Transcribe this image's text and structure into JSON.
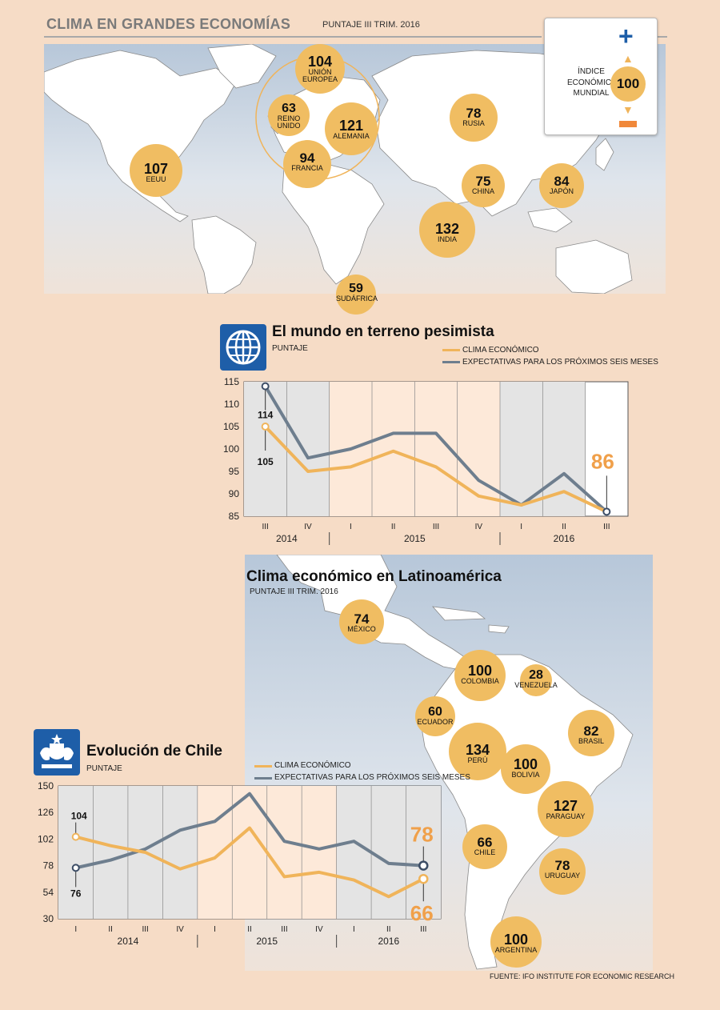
{
  "header": {
    "title": "CLIMA EN GRANDES ECONOMÍAS",
    "subtitle": "PUNTAJE III TRIM. 2016"
  },
  "index_box": {
    "label_line1": "ÍNDICE",
    "label_line2": "ECONÓMICO",
    "label_line3": "MUNDIAL",
    "value": "100",
    "plus": "+",
    "minus": "−",
    "colors": {
      "plus": "#1e5ea8",
      "minus": "#f0883a",
      "bubble": "#f0bd62"
    }
  },
  "world_map": {
    "countries": [
      {
        "value": "104",
        "name": "UNIÓN EUROPEA"
      },
      {
        "value": "63",
        "name": "REINO UNIDO"
      },
      {
        "value": "121",
        "name": "ALEMANIA"
      },
      {
        "value": "94",
        "name": "FRANCIA"
      },
      {
        "value": "78",
        "name": "RUSIA"
      },
      {
        "value": "107",
        "name": "EEUU"
      },
      {
        "value": "75",
        "name": "CHINA"
      },
      {
        "value": "84",
        "name": "JAPÓN"
      },
      {
        "value": "132",
        "name": "INDIA"
      },
      {
        "value": "59",
        "name": "SUDÁFRICA"
      }
    ]
  },
  "latam_map": {
    "title": "Clima económico en Latinoamérica",
    "subtitle": "PUNTAJE III TRIM. 2016",
    "countries": [
      {
        "value": "74",
        "name": "MÉXICO"
      },
      {
        "value": "100",
        "name": "COLOMBIA"
      },
      {
        "value": "28",
        "name": "VENEZUELA"
      },
      {
        "value": "60",
        "name": "ECUADOR"
      },
      {
        "value": "82",
        "name": "BRASIL"
      },
      {
        "value": "134",
        "name": "PERÚ"
      },
      {
        "value": "100",
        "name": "BOLIVIA"
      },
      {
        "value": "127",
        "name": "PARAGUAY"
      },
      {
        "value": "66",
        "name": "CHILE"
      },
      {
        "value": "78",
        "name": "URUGUAY"
      },
      {
        "value": "100",
        "name": "ARGENTINA"
      }
    ]
  },
  "source": "FUENTE: IFO INSTITUTE FOR ECONOMIC RESEARCH",
  "chart_data": [
    {
      "type": "line",
      "title": "El mundo en terreno pesimista",
      "ylabel": "PUNTAJE",
      "categories": [
        "III",
        "IV",
        "I",
        "II",
        "III",
        "IV",
        "I",
        "II",
        "III"
      ],
      "year_labels": [
        {
          "label": "2014",
          "at": 0.5
        },
        {
          "label": "2015",
          "at": 3.5
        },
        {
          "label": "2016",
          "at": 7
        }
      ],
      "ylim": [
        85,
        115
      ],
      "yticks": [
        85,
        90,
        95,
        100,
        105,
        110,
        115
      ],
      "series": [
        {
          "name": "CLIMA ECONÓMICO",
          "color": "#f0b45a",
          "values": [
            105,
            95,
            96,
            99.5,
            96,
            89.5,
            87.5,
            90.5,
            86
          ]
        },
        {
          "name": "EXPECTATIVAS PARA LOS PRÓXIMOS SEIS MESES",
          "color": "#6e7e8e",
          "values": [
            114,
            98,
            100,
            103.5,
            103.5,
            93,
            87.5,
            94.5,
            86
          ]
        }
      ],
      "annotations": {
        "start_clima": "105",
        "start_expect": "114",
        "end_value": "86"
      },
      "shaded_bands": [
        "2014",
        "2016"
      ]
    },
    {
      "type": "line",
      "title": "Evolución de Chile",
      "ylabel": "PUNTAJE",
      "categories": [
        "I",
        "II",
        "III",
        "IV",
        "I",
        "II",
        "III",
        "IV",
        "I",
        "II",
        "III"
      ],
      "year_labels": [
        {
          "label": "2014",
          "at": 1.5
        },
        {
          "label": "2015",
          "at": 5.5
        },
        {
          "label": "2016",
          "at": 9
        }
      ],
      "ylim": [
        30,
        150
      ],
      "yticks": [
        30,
        54,
        78,
        102,
        126,
        150
      ],
      "series": [
        {
          "name": "CLIMA ECONÓMICO",
          "color": "#f0b45a",
          "values": [
            104,
            96,
            90,
            75,
            85,
            112,
            68,
            72,
            65,
            50,
            66
          ]
        },
        {
          "name": "EXPECTATIVAS PARA LOS PRÓXIMOS SEIS MESES",
          "color": "#6e7e8e",
          "values": [
            76,
            83,
            93,
            110,
            118,
            143,
            100,
            93,
            100,
            80,
            78
          ]
        }
      ],
      "annotations": {
        "start_clima": "104",
        "start_expect": "76",
        "end_expect": "78",
        "end_clima": "66"
      },
      "shaded_bands": [
        "2014",
        "2016"
      ]
    }
  ]
}
